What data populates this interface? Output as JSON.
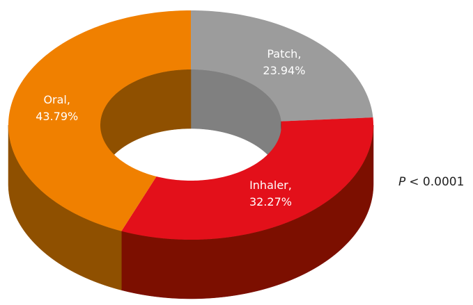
{
  "chart_data": {
    "type": "donut3d",
    "categories": [
      "Patch,",
      "Inhaler,",
      "Oral,"
    ],
    "values": [
      23.94,
      32.27,
      43.79
    ],
    "value_labels": [
      "23.94%",
      "32.27%",
      "43.79%"
    ],
    "colors": [
      "#9c9c9c",
      "#e3101a",
      "#f08000"
    ],
    "side_colors": [
      "#808080",
      "#7c0f00",
      "#8f5000"
    ],
    "annotation": [
      "P",
      "< 0.0001"
    ]
  }
}
